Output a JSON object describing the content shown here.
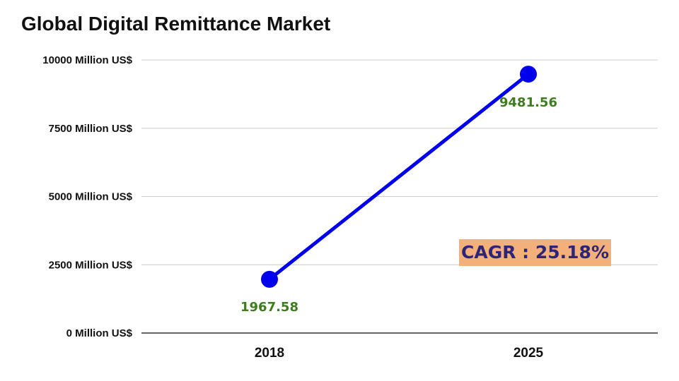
{
  "chart_data": {
    "type": "line",
    "title": "Global Digital Remittance Market",
    "xlabel": "",
    "ylabel": "",
    "categories": [
      "2018",
      "2025"
    ],
    "series": [
      {
        "values": [
          1967.58,
          9481.56
        ],
        "data_labels": [
          "1967.58",
          "9481.56"
        ]
      }
    ],
    "ylim": [
      0,
      10000
    ],
    "y_ticks": [
      0,
      2500,
      5000,
      7500,
      10000
    ],
    "y_tick_labels": [
      "0 Million US$",
      "2500 Million US$",
      "5000 Million US$",
      "7500 Million US$",
      "10000 Million US$"
    ],
    "grid": true,
    "legend": "none",
    "annotation": "CAGR : 25.18%",
    "colors": {
      "line": "#0000ee",
      "data_label": "#3e7d1e",
      "annotation_bg": "#f4b07a",
      "annotation_text": "#2e2577",
      "grid": "#cccccc"
    }
  }
}
